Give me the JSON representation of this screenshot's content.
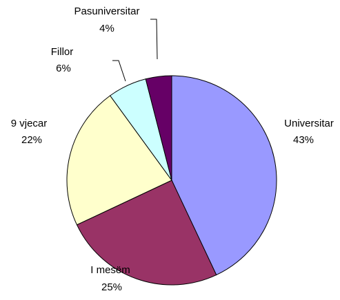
{
  "chart_data": {
    "type": "pie",
    "categories": [
      "Universitar",
      "I mesëm",
      "9 vjecar",
      "Fillor",
      "Pasuniversitar"
    ],
    "values": [
      43,
      25,
      22,
      6,
      4
    ],
    "value_labels": [
      "43%",
      "25%",
      "22%",
      "6%",
      "4%"
    ],
    "colors": [
      "#9999ff",
      "#993366",
      "#ffffcc",
      "#ccffff",
      "#660066"
    ]
  }
}
